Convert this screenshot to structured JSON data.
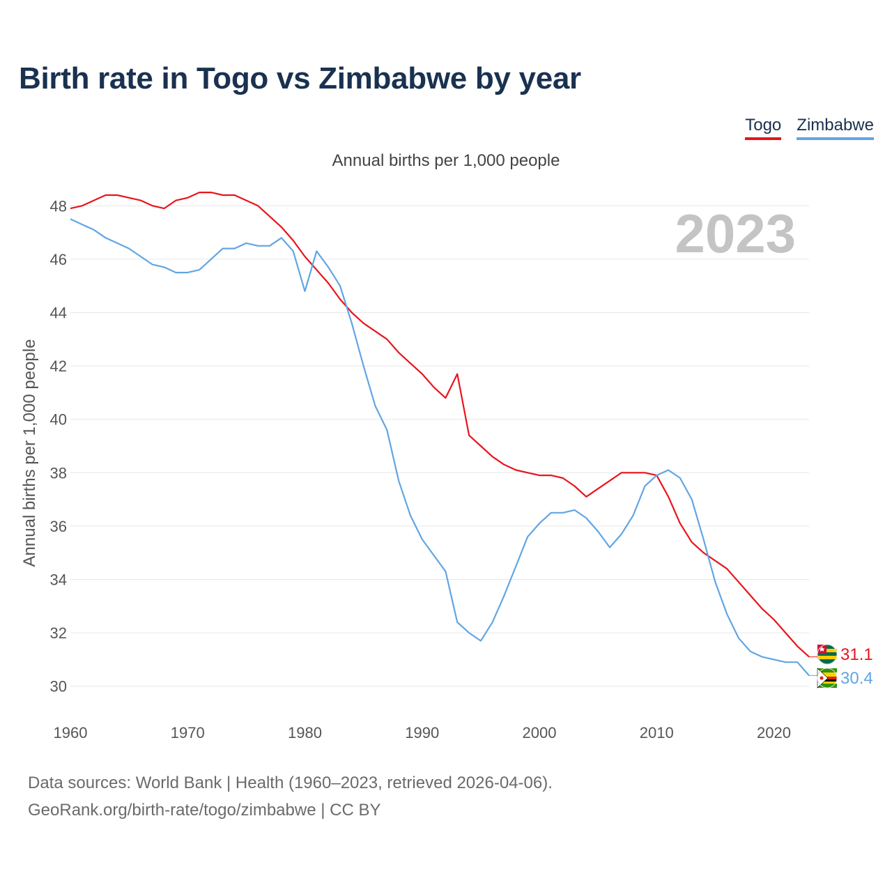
{
  "title": "Birth rate in Togo vs Zimbabwe by year",
  "subtitle": "Annual births per 1,000 people",
  "year_overlay": "2023",
  "legend": [
    {
      "name": "Togo",
      "color": "#e8141c"
    },
    {
      "name": "Zimbabwe",
      "color": "#61a5e4"
    }
  ],
  "source": {
    "line1": "Data sources: World Bank | Health (1960–2023, retrieved 2026-04-06).",
    "line2": "GeoRank.org/birth-rate/togo/zimbabwe | CC BY"
  },
  "chart_data": {
    "type": "line",
    "title": "Birth rate in Togo vs Zimbabwe by year",
    "xlabel": "",
    "ylabel": "Annual births per 1,000 people",
    "xlim": [
      1960,
      2023
    ],
    "ylim": [
      29,
      49
    ],
    "x_ticks": [
      1960,
      1970,
      1980,
      1990,
      2000,
      2010,
      2020
    ],
    "y_ticks": [
      30,
      32,
      34,
      36,
      38,
      40,
      42,
      44,
      46,
      48
    ],
    "grid": true,
    "x": [
      1960,
      1961,
      1962,
      1963,
      1964,
      1965,
      1966,
      1967,
      1968,
      1969,
      1970,
      1971,
      1972,
      1973,
      1974,
      1975,
      1976,
      1977,
      1978,
      1979,
      1980,
      1981,
      1982,
      1983,
      1984,
      1985,
      1986,
      1987,
      1988,
      1989,
      1990,
      1991,
      1992,
      1993,
      1994,
      1995,
      1996,
      1997,
      1998,
      1999,
      2000,
      2001,
      2002,
      2003,
      2004,
      2005,
      2006,
      2007,
      2008,
      2009,
      2010,
      2011,
      2012,
      2013,
      2014,
      2015,
      2016,
      2017,
      2018,
      2019,
      2020,
      2021,
      2022,
      2023
    ],
    "series": [
      {
        "name": "Togo",
        "color": "#e8141c",
        "end_label": "31.1",
        "values": [
          47.9,
          48.0,
          48.2,
          48.4,
          48.4,
          48.3,
          48.2,
          48.0,
          47.9,
          48.2,
          48.3,
          48.5,
          48.5,
          48.4,
          48.4,
          48.2,
          48.0,
          47.6,
          47.2,
          46.7,
          46.1,
          45.6,
          45.1,
          44.5,
          44.0,
          43.6,
          43.3,
          43.0,
          42.5,
          42.1,
          41.7,
          41.2,
          40.8,
          41.7,
          39.4,
          39.0,
          38.6,
          38.3,
          38.1,
          38.0,
          37.9,
          37.9,
          37.8,
          37.5,
          37.1,
          37.4,
          37.7,
          38.0,
          38.0,
          38.0,
          37.9,
          37.1,
          36.1,
          35.4,
          35.0,
          34.7,
          34.4,
          33.9,
          33.4,
          32.9,
          32.5,
          32.0,
          31.5,
          31.1
        ]
      },
      {
        "name": "Zimbabwe",
        "color": "#61a5e4",
        "end_label": "30.4",
        "values": [
          47.5,
          47.3,
          47.1,
          46.8,
          46.6,
          46.4,
          46.1,
          45.8,
          45.7,
          45.5,
          45.5,
          45.6,
          46.0,
          46.4,
          46.4,
          46.6,
          46.5,
          46.5,
          46.8,
          46.3,
          44.8,
          46.3,
          45.7,
          45.0,
          43.6,
          42.0,
          40.5,
          39.6,
          37.7,
          36.4,
          35.5,
          34.9,
          34.3,
          32.4,
          32.0,
          31.7,
          32.4,
          33.4,
          34.5,
          35.6,
          36.1,
          36.5,
          36.5,
          36.6,
          36.3,
          35.8,
          35.2,
          35.7,
          36.4,
          37.5,
          37.9,
          38.1,
          37.8,
          37.0,
          35.5,
          33.9,
          32.7,
          31.8,
          31.3,
          31.1,
          31.0,
          30.9,
          30.9,
          30.4
        ]
      }
    ]
  }
}
